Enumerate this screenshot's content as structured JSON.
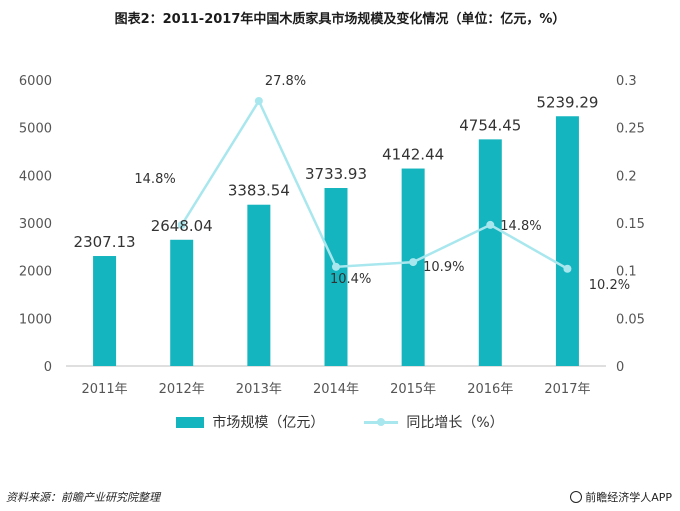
{
  "title": "图表2：2011-2017年中国木质家具市场规模及变化情况（单位：亿元，%）",
  "source": "资料来源：前瞻产业研究院整理",
  "brand": "前瞻经济学人APP",
  "colors": {
    "bar": "#14b5be",
    "line": "#a9e7ee",
    "axis": "#bfbfbf",
    "text": "#555555"
  },
  "chart_data": {
    "type": "bar",
    "categories": [
      "2011年",
      "2012年",
      "2013年",
      "2014年",
      "2015年",
      "2016年",
      "2017年"
    ],
    "series": [
      {
        "name": "市场规模（亿元）",
        "type": "bar",
        "axis": "left",
        "values": [
          2307.13,
          2648.04,
          3383.54,
          3733.93,
          4142.44,
          4754.45,
          5239.29
        ],
        "labels": [
          "2307.13",
          "2648.04",
          "3383.54",
          "3733.93",
          "4142.44",
          "4754.45",
          "5239.29"
        ]
      },
      {
        "name": "同比增长（%）",
        "type": "line",
        "axis": "right",
        "values": [
          null,
          0.148,
          0.278,
          0.104,
          0.109,
          0.148,
          0.102
        ],
        "labels": [
          "",
          "14.8%",
          "27.8%",
          "10.4%",
          "10.9%",
          "14.8%",
          "10.2%"
        ]
      }
    ],
    "y_left": {
      "range": [
        0,
        6000
      ],
      "ticks": [
        "0",
        "1000",
        "2000",
        "3000",
        "4000",
        "5000",
        "6000"
      ]
    },
    "y_right": {
      "range": [
        0,
        0.3
      ],
      "ticks": [
        "0",
        "0.05",
        "0.1",
        "0.15",
        "0.2",
        "0.25",
        "0.3"
      ]
    },
    "grid": false,
    "legend": "bottom"
  }
}
